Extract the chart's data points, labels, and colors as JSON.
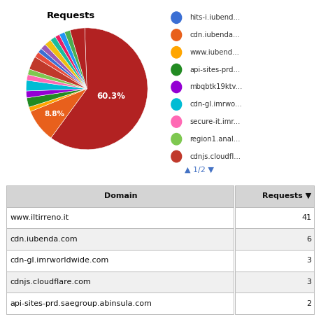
{
  "title": "Requests",
  "slice_values": [
    60.3,
    8.8,
    1.2,
    2.5,
    1.8,
    2.8,
    1.5,
    1.5,
    3.5,
    1.5,
    1.2,
    1.5,
    1.8,
    1.5,
    1.2,
    1.5,
    1.5,
    3.9
  ],
  "slice_colors": [
    "#b22222",
    "#e8601c",
    "#ffa500",
    "#228b22",
    "#9400d3",
    "#00bcd4",
    "#ff69b4",
    "#7ec850",
    "#c0392b",
    "#e74c3c",
    "#3b6fd4",
    "#9b59b6",
    "#f0c010",
    "#1abc9c",
    "#e91e63",
    "#2196f3",
    "#4caf50",
    "#b22222"
  ],
  "legend_labels": [
    "hits-i.iubend...",
    "cdn.iubenda...",
    "www.iubend...",
    "api-sites-prd...",
    "mbqbtk19ktv...",
    "cdn-gl.imrwo...",
    "secure-it.imr...",
    "region1.anal...",
    "cdnjs.cloudfl..."
  ],
  "legend_colors": [
    "#3b6fd4",
    "#e8601c",
    "#ffa500",
    "#228b22",
    "#9400d3",
    "#00bcd4",
    "#ff69b4",
    "#7ec850",
    "#c0392b"
  ],
  "label_60": "60.3%",
  "label_88": "8.8%",
  "pagination": "▲ 1/2 ▼",
  "table_headers": [
    "Domain",
    "Requests ▼"
  ],
  "table_rows": [
    [
      "www.iltirreno.it",
      "41"
    ],
    [
      "cdn.iubenda.com",
      "6"
    ],
    [
      "cdn-gl.imrworldwide.com",
      "3"
    ],
    [
      "cdnjs.cloudflare.com",
      "3"
    ],
    [
      "api-sites-prd.saegroup.abinsula.com",
      "2"
    ]
  ],
  "bg_color": "#ffffff",
  "table_header_bg": "#d4d4d4",
  "table_row_bg1": "#ffffff",
  "table_row_bg2": "#f0f0f0",
  "table_border_color": "#bbbbbb",
  "pagination_color": "#4472c4"
}
